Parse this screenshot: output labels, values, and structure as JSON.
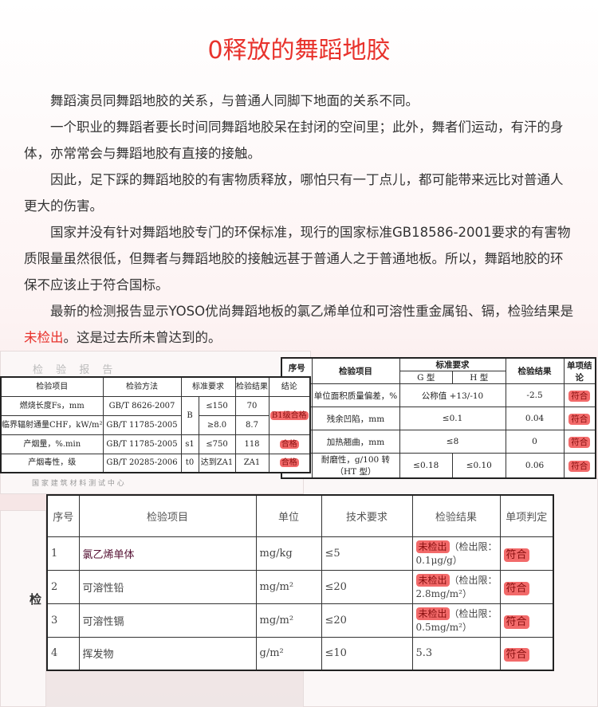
{
  "title": "0释放的舞蹈地胶",
  "paragraphs": [
    "舞蹈演员同舞蹈地胶的关系，与普通人同脚下地面的关系不同。",
    "一个职业的舞蹈者要长时间同舞蹈地胶呆在封闭的空间里；此外，舞者们运动，有汗的身体，亦常常会与舞蹈地胶有直接的接触。",
    "因此，足下踩的舞蹈地胶的有害物质释放，哪怕只有一丁点儿，都可能带来远比对普通人更大的伤害。",
    "国家并没有针对舞蹈地胶专门的环保标准，现行的国家标准GB18586-2001要求的有害物质限量虽然很低，但舞者与舞蹈地胶的接触远甚于普通人之于普通地板。所以，舞蹈地胶的环保不应该止于符合国标。"
  ],
  "last_paragraph": {
    "before": "最新的检测报告显示YOSO优尚舞蹈地板的氯乙烯单位和可溶性重金属铅、镉，检验结果是",
    "highlight": "未检出",
    "after": "。这是过去所未曾达到的。"
  },
  "report_a": {
    "caption": "检 验 报 告",
    "footer": "国 家 建 筑 材 料 测 试 中 心",
    "headers": [
      "检验项目",
      "检验方法",
      "标准要求",
      "检验结果",
      "结论"
    ],
    "rows": [
      {
        "item": "燃烧长度Fs，mm",
        "method": "GB/T 8626-2007",
        "grade": "B",
        "req": "≤150",
        "result": "70",
        "conclusion": "B1级合格"
      },
      {
        "item": "临界辐射通量CHF，kW/m²",
        "method": "GB/T 11785-2005",
        "req": "≥8.0",
        "result": "8.7"
      },
      {
        "item": "产烟量，%.min",
        "method": "GB/T 11785-2005",
        "grade": "s1",
        "req": "≤750",
        "result": "118",
        "conclusion": "合格"
      },
      {
        "item": "产烟毒性，级",
        "method": "GB/T 20285-2006",
        "grade": "t0",
        "req": "达到ZA1",
        "result": "ZA1",
        "conclusion": "合格"
      }
    ]
  },
  "report_b": {
    "headers": {
      "no": "序号",
      "item": "检验项目",
      "req": "标准要求",
      "g": "G 型",
      "h": "H 型",
      "result": "检验结果",
      "conclusion": "单项结论"
    },
    "rows": [
      {
        "item": "单位面积质量偏差，%",
        "req": "公称值 +13/-10",
        "result": "-2.5",
        "conclusion": "符合"
      },
      {
        "item": "残余凹陷，mm",
        "req": "≤0.1",
        "result": "0.04",
        "conclusion": "符合"
      },
      {
        "item": "加热翘曲，mm",
        "req": "≤8",
        "result": "0",
        "conclusion": "符合"
      },
      {
        "item": "耐磨性，g/100 转（HT 型）",
        "g": "≤0.18",
        "h": "≤0.10",
        "result": "0.06",
        "conclusion": "符合"
      }
    ]
  },
  "report_c": {
    "side_label": "检",
    "headers": [
      "序号",
      "检验项目",
      "单位",
      "技术要求",
      "检验结果",
      "单项判定"
    ],
    "rows": [
      {
        "no": "1",
        "item": "氯乙烯单体",
        "unit": "mg/kg",
        "req": "≤5",
        "mark": "未检出",
        "detail": "（检出限：0.1μg/g）",
        "verdict": "符合"
      },
      {
        "no": "2",
        "item": "可溶性铅",
        "unit": "mg/m²",
        "req": "≤20",
        "mark": "未检出",
        "detail": "（检出限：2.8mg/m²）",
        "verdict": "符合"
      },
      {
        "no": "3",
        "item": "可溶性镉",
        "unit": "mg/m²",
        "req": "≤20",
        "mark": "未检出",
        "detail": "（检出限：0.5mg/m²）",
        "verdict": "符合"
      },
      {
        "no": "4",
        "item": "挥发物",
        "unit": "g/m²",
        "req": "≤10",
        "mark": "",
        "detail": "5.3",
        "verdict": "符合"
      }
    ]
  },
  "colors": {
    "accent": "#e8322c",
    "marker": "#f26a6a"
  }
}
